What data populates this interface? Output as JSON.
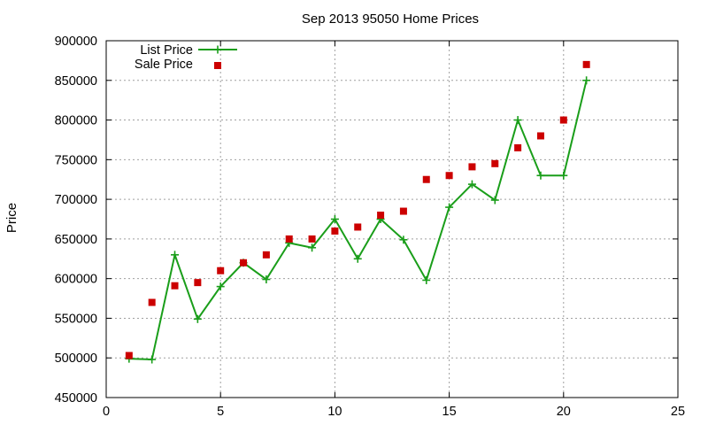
{
  "chart_data": {
    "type": "line",
    "title": "Sep 2013 95050 Home Prices",
    "xlabel": "",
    "ylabel": "Price",
    "xlim": [
      0,
      25
    ],
    "ylim": [
      450000,
      900000
    ],
    "xticks": [
      0,
      5,
      10,
      15,
      20,
      25
    ],
    "yticks": [
      450000,
      500000,
      550000,
      600000,
      650000,
      700000,
      750000,
      800000,
      850000,
      900000
    ],
    "grid": true,
    "legend_position": "top-left",
    "series": [
      {
        "name": "List Price",
        "style": "line-with-plus-markers",
        "color": "#1a9e1a",
        "x": [
          1,
          2,
          3,
          4,
          5,
          6,
          7,
          8,
          9,
          10,
          11,
          12,
          13,
          14,
          15,
          16,
          17,
          18,
          19,
          20,
          21
        ],
        "y": [
          499000,
          498000,
          630000,
          549000,
          590000,
          620000,
          599000,
          645000,
          639000,
          675000,
          625000,
          675000,
          649000,
          598000,
          690000,
          719000,
          699000,
          800000,
          730000,
          730000,
          850000
        ]
      },
      {
        "name": "Sale Price",
        "style": "square-markers",
        "color": "#cc0000",
        "x": [
          1,
          2,
          3,
          4,
          5,
          6,
          7,
          8,
          9,
          10,
          11,
          12,
          13,
          14,
          15,
          16,
          17,
          18,
          19,
          20,
          21
        ],
        "y": [
          503000,
          570000,
          591000,
          595000,
          610000,
          620000,
          630000,
          650000,
          650000,
          660000,
          665000,
          680000,
          685000,
          725000,
          730000,
          741000,
          745000,
          765000,
          780000,
          800000,
          870000
        ]
      }
    ]
  }
}
